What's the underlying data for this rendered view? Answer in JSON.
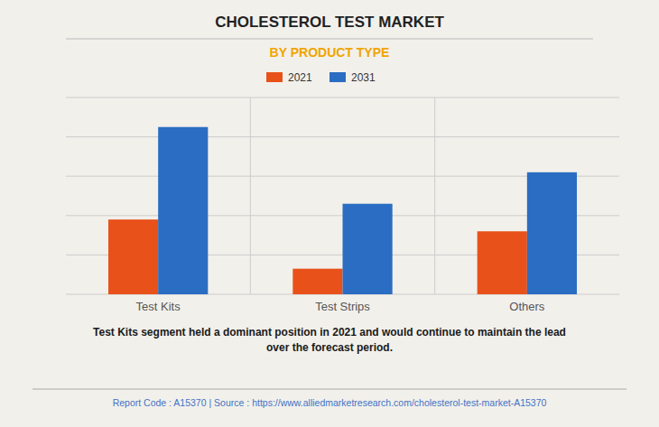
{
  "chart_data": {
    "type": "bar",
    "title": "CHOLESTEROL TEST MARKET",
    "subtitle": "BY PRODUCT TYPE",
    "categories": [
      "Test Kits",
      "Test Strips",
      "Others"
    ],
    "series": [
      {
        "name": "2021",
        "color": "#e8521a",
        "values": [
          0.38,
          0.13,
          0.32
        ]
      },
      {
        "name": "2031",
        "color": "#2b6dc2",
        "values": [
          0.85,
          0.46,
          0.62
        ]
      }
    ],
    "ylim": [
      0,
      1.0
    ],
    "yticks": [
      0,
      0.2,
      0.4,
      0.6,
      0.8,
      1.0
    ],
    "grid": true,
    "legend": "top",
    "tick_labels": "x",
    "annotations": [
      "Test Kits segment held a dominant position in 2021 and would continue to maintain the lead\nover the forecast period.",
      "Report Code : A15370  |  Source : https://www.alliedmarketresearch.com/cholesterol-test-market-A15370"
    ]
  }
}
